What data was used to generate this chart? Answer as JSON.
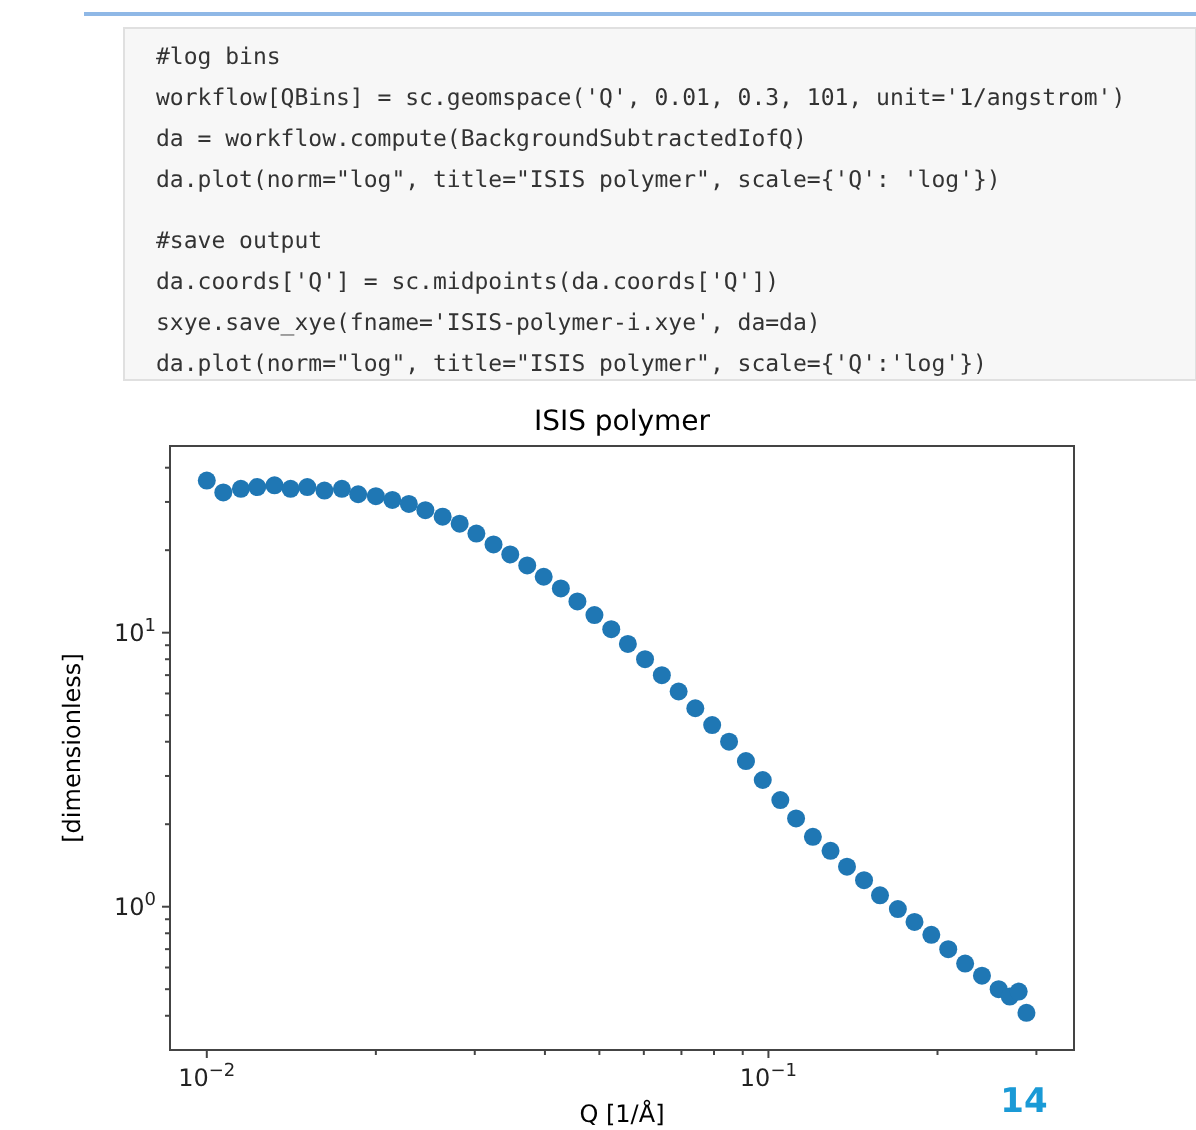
{
  "chart_data": {
    "type": "scatter",
    "title": "ISIS polymer",
    "xlabel": "Q [1/Å]",
    "ylabel": "[dimensionless]",
    "log": "xy",
    "grid": false,
    "marker": "circle",
    "xlim": [
      0.0086,
      0.35
    ],
    "ylim": [
      0.3,
      48
    ],
    "xticks": [
      {
        "value": 0.01,
        "label": "10$^{−2}$"
      },
      {
        "value": 0.02,
        "label": null
      },
      {
        "value": 0.03,
        "label": null
      },
      {
        "value": 0.04,
        "label": null
      },
      {
        "value": 0.05,
        "label": null
      },
      {
        "value": 0.06,
        "label": null
      },
      {
        "value": 0.07,
        "label": null
      },
      {
        "value": 0.08,
        "label": null
      },
      {
        "value": 0.09,
        "label": null
      },
      {
        "value": 0.1,
        "label": "10$^{−1}$"
      },
      {
        "value": 0.2,
        "label": null
      },
      {
        "value": 0.3,
        "label": null
      }
    ],
    "yticks": [
      {
        "value": 0.4,
        "label": null
      },
      {
        "value": 0.5,
        "label": null
      },
      {
        "value": 0.6,
        "label": null
      },
      {
        "value": 0.7,
        "label": null
      },
      {
        "value": 0.8,
        "label": null
      },
      {
        "value": 0.9,
        "label": null
      },
      {
        "value": 1,
        "label": "10$^{0}$"
      },
      {
        "value": 2,
        "label": null
      },
      {
        "value": 3,
        "label": null
      },
      {
        "value": 4,
        "label": null
      },
      {
        "value": 5,
        "label": null
      },
      {
        "value": 6,
        "label": null
      },
      {
        "value": 7,
        "label": null
      },
      {
        "value": 8,
        "label": null
      },
      {
        "value": 9,
        "label": null
      },
      {
        "value": 10,
        "label": "10$^{1}$"
      },
      {
        "value": 20,
        "label": null
      },
      {
        "value": 30,
        "label": null
      },
      {
        "value": 40,
        "label": null
      }
    ],
    "series": [
      {
        "color": "#1f77b4",
        "x": [
          0.01,
          0.0107,
          0.0115,
          0.0123,
          0.0132,
          0.0141,
          0.0151,
          0.0162,
          0.0174,
          0.0186,
          0.02,
          0.0214,
          0.0229,
          0.0245,
          0.0263,
          0.0282,
          0.0302,
          0.0324,
          0.0347,
          0.0372,
          0.0398,
          0.0427,
          0.0457,
          0.049,
          0.0525,
          0.0562,
          0.0603,
          0.0646,
          0.0692,
          0.0741,
          0.0794,
          0.0851,
          0.0912,
          0.0977,
          0.105,
          0.112,
          0.12,
          0.129,
          0.138,
          0.148,
          0.158,
          0.17,
          0.182,
          0.195,
          0.209,
          0.224,
          0.24,
          0.257,
          0.269,
          0.279,
          0.288
        ],
        "values": [
          35.9,
          32.5,
          33.5,
          34,
          34.5,
          33.5,
          34,
          33,
          33.5,
          32,
          31.5,
          30.5,
          29.5,
          28,
          26.5,
          25,
          23,
          21,
          19.3,
          17.6,
          16,
          14.5,
          13,
          11.6,
          10.3,
          9.1,
          8,
          7,
          6.1,
          5.3,
          4.6,
          4,
          3.4,
          2.9,
          2.45,
          2.1,
          1.8,
          1.6,
          1.4,
          1.25,
          1.1,
          0.98,
          0.88,
          0.79,
          0.7,
          0.62,
          0.56,
          0.5,
          0.47,
          0.49,
          0.41
        ]
      }
    ],
    "annotations": [
      "#log bins",
      "workflow[QBins] = sc.geomspace('Q', 0.01, 0.3, 101, unit='1/angstrom')",
      "da = workflow.compute(BackgroundSubtractedIofQ)",
      "da.plot(norm=\"log\", title=\"ISIS polymer\", scale={'Q': 'log'})",
      "#save output",
      "da.coords['Q'] = sc.midpoints(da.coords['Q'])",
      "sxye.save_xye(fname='ISIS-polymer-i.xye', da=da)",
      "da.plot(norm=\"log\", title=\"ISIS polymer\", scale={'Q':'log'})",
      "14"
    ]
  }
}
